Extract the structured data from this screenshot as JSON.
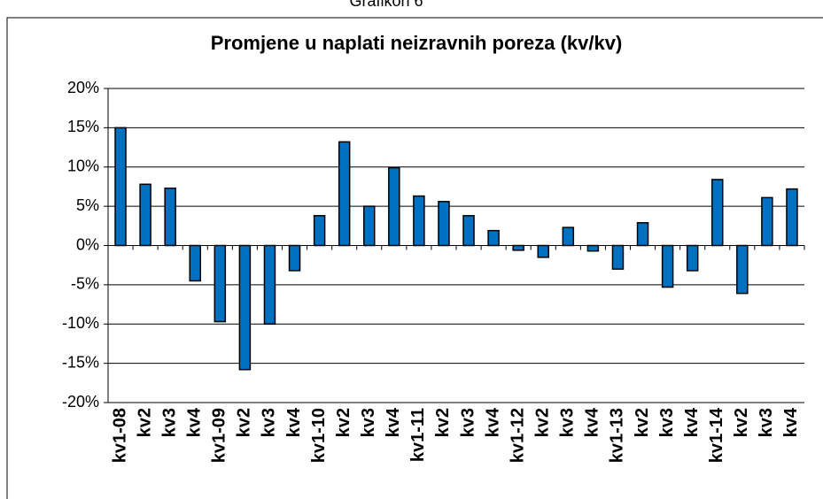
{
  "chart_data": {
    "type": "bar",
    "caption": "Grafikon 6",
    "title": "Promjene u naplati neizravnih poreza (kv/kv)",
    "categories": [
      "kv1-08",
      "kv2",
      "kv3",
      "kv4",
      "kv1-09",
      "kv2",
      "kv3",
      "kv4",
      "kv1-10",
      "kv2",
      "kv3",
      "kv4",
      "kv1-11",
      "kv2",
      "kv3",
      "kv4",
      "kv1-12",
      "kv2",
      "kv3",
      "kv4",
      "kv1-13",
      "kv2",
      "kv3",
      "kv4",
      "kv1-14",
      "kv2",
      "kv3",
      "kv4"
    ],
    "values": [
      15,
      7.8,
      7.3,
      -4.5,
      -9.7,
      -15.8,
      -10,
      -3.2,
      3.8,
      13.2,
      5,
      9.9,
      6.3,
      5.6,
      3.8,
      1.9,
      -0.6,
      -1.5,
      2.3,
      -0.7,
      -3,
      2.9,
      -5.3,
      -3.2,
      8.4,
      -6.1,
      6.1,
      7.2
    ],
    "color": "#0070c0",
    "ylim": [
      -20,
      20
    ],
    "yticks": [
      {
        "value": -20,
        "label": "-20%"
      },
      {
        "value": -15,
        "label": "-15%"
      },
      {
        "value": -10,
        "label": "-10%"
      },
      {
        "value": -5,
        "label": "-5%"
      },
      {
        "value": 0,
        "label": "0%"
      },
      {
        "value": 5,
        "label": "5%"
      },
      {
        "value": 10,
        "label": "10%"
      },
      {
        "value": 15,
        "label": "15%"
      },
      {
        "value": 20,
        "label": "20%"
      }
    ],
    "grid": true
  }
}
